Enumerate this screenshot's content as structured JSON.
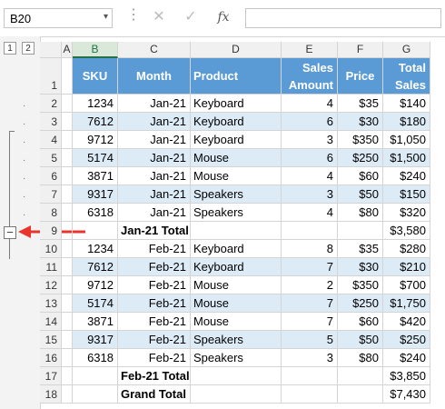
{
  "formula_bar": {
    "name_box": "B20",
    "name_box_arrow": "▾",
    "dots": "⋮",
    "cancel": "✕",
    "enter": "✓",
    "fx": "fx",
    "formula": ""
  },
  "outline": {
    "levels": [
      "1",
      "2"
    ],
    "collapse_symbol": "−",
    "dot": "·"
  },
  "columns": [
    "A",
    "B",
    "C",
    "D",
    "E",
    "F",
    "G"
  ],
  "header_row": {
    "row": "1",
    "sku": "SKU",
    "month": "Month",
    "product": "Product",
    "sales_line1": "Sales",
    "sales_line2": "Amount",
    "price": "Price",
    "total_line1": "Total",
    "total_line2": "Sales"
  },
  "rows": [
    {
      "row": "2",
      "sku": "1234",
      "month": "Jan-21",
      "product": "Keyboard",
      "amount": "4",
      "price": "$35",
      "total": "$140"
    },
    {
      "row": "3",
      "sku": "7612",
      "month": "Jan-21",
      "product": "Keyboard",
      "amount": "6",
      "price": "$30",
      "total": "$180"
    },
    {
      "row": "4",
      "sku": "9712",
      "month": "Jan-21",
      "product": "Keyboard",
      "amount": "3",
      "price": "$350",
      "total": "$1,050"
    },
    {
      "row": "5",
      "sku": "5174",
      "month": "Jan-21",
      "product": "Mouse",
      "amount": "6",
      "price": "$250",
      "total": "$1,500"
    },
    {
      "row": "6",
      "sku": "3871",
      "month": "Jan-21",
      "product": "Mouse",
      "amount": "4",
      "price": "$60",
      "total": "$240"
    },
    {
      "row": "7",
      "sku": "9317",
      "month": "Jan-21",
      "product": "Speakers",
      "amount": "3",
      "price": "$50",
      "total": "$150"
    },
    {
      "row": "8",
      "sku": "6318",
      "month": "Jan-21",
      "product": "Speakers",
      "amount": "4",
      "price": "$80",
      "total": "$320"
    },
    {
      "row": "9",
      "sku": "",
      "month": "Jan-21 Total",
      "product": "",
      "amount": "",
      "price": "",
      "total": "$3,580"
    },
    {
      "row": "10",
      "sku": "1234",
      "month": "Feb-21",
      "product": "Keyboard",
      "amount": "8",
      "price": "$35",
      "total": "$280"
    },
    {
      "row": "11",
      "sku": "7612",
      "month": "Feb-21",
      "product": "Keyboard",
      "amount": "7",
      "price": "$30",
      "total": "$210"
    },
    {
      "row": "12",
      "sku": "9712",
      "month": "Feb-21",
      "product": "Mouse",
      "amount": "2",
      "price": "$350",
      "total": "$700"
    },
    {
      "row": "13",
      "sku": "5174",
      "month": "Feb-21",
      "product": "Mouse",
      "amount": "7",
      "price": "$250",
      "total": "$1,750"
    },
    {
      "row": "14",
      "sku": "3871",
      "month": "Feb-21",
      "product": "Mouse",
      "amount": "7",
      "price": "$60",
      "total": "$420"
    },
    {
      "row": "15",
      "sku": "9317",
      "month": "Feb-21",
      "product": "Speakers",
      "amount": "5",
      "price": "$50",
      "total": "$250"
    },
    {
      "row": "16",
      "sku": "6318",
      "month": "Feb-21",
      "product": "Speakers",
      "amount": "3",
      "price": "$80",
      "total": "$240"
    },
    {
      "row": "17",
      "sku": "",
      "month": "Feb-21 Total",
      "product": "",
      "amount": "",
      "price": "",
      "total": "$3,850"
    },
    {
      "row": "18",
      "sku": "",
      "month": "Grand Total",
      "product": "",
      "amount": "",
      "price": "",
      "total": "$7,430"
    }
  ],
  "colors": {
    "header_fill": "#5b9bd5",
    "stripe_fill": "#ddebf7",
    "arrow": "#e8362f"
  }
}
